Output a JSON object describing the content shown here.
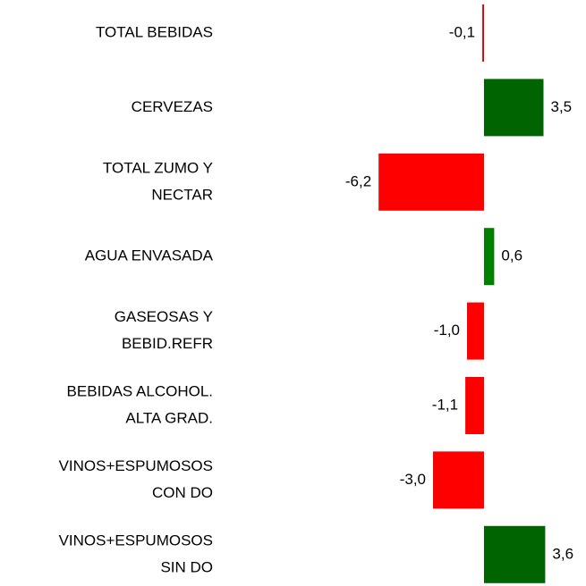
{
  "chart_data": {
    "type": "hbar",
    "categories": [
      [
        "TOTAL BEBIDAS"
      ],
      [
        "CERVEZAS"
      ],
      [
        "TOTAL ZUMO Y",
        "NECTAR"
      ],
      [
        "AGUA ENVASADA"
      ],
      [
        "GASEOSAS Y",
        "BEBID.REFR"
      ],
      [
        "BEBIDAS ALCOHOL.",
        "ALTA GRAD."
      ],
      [
        "VINOS+ESPUMOSOS",
        "CON DO"
      ],
      [
        "VINOS+ESPUMOSOS",
        "SIN DO"
      ]
    ],
    "values": [
      -0.1,
      3.5,
      -6.2,
      0.6,
      -1.0,
      -1.1,
      -3.0,
      3.6
    ],
    "value_labels": [
      "-0,1",
      "3,5",
      "-6,2",
      "0,6",
      "-1,0",
      "-1,1",
      "-3,0",
      "3,6"
    ],
    "colors": [
      "#e00000",
      "#006400",
      "#ff0000",
      "#008000",
      "#ff0000",
      "#ff0000",
      "#ff0000",
      "#006400"
    ]
  }
}
